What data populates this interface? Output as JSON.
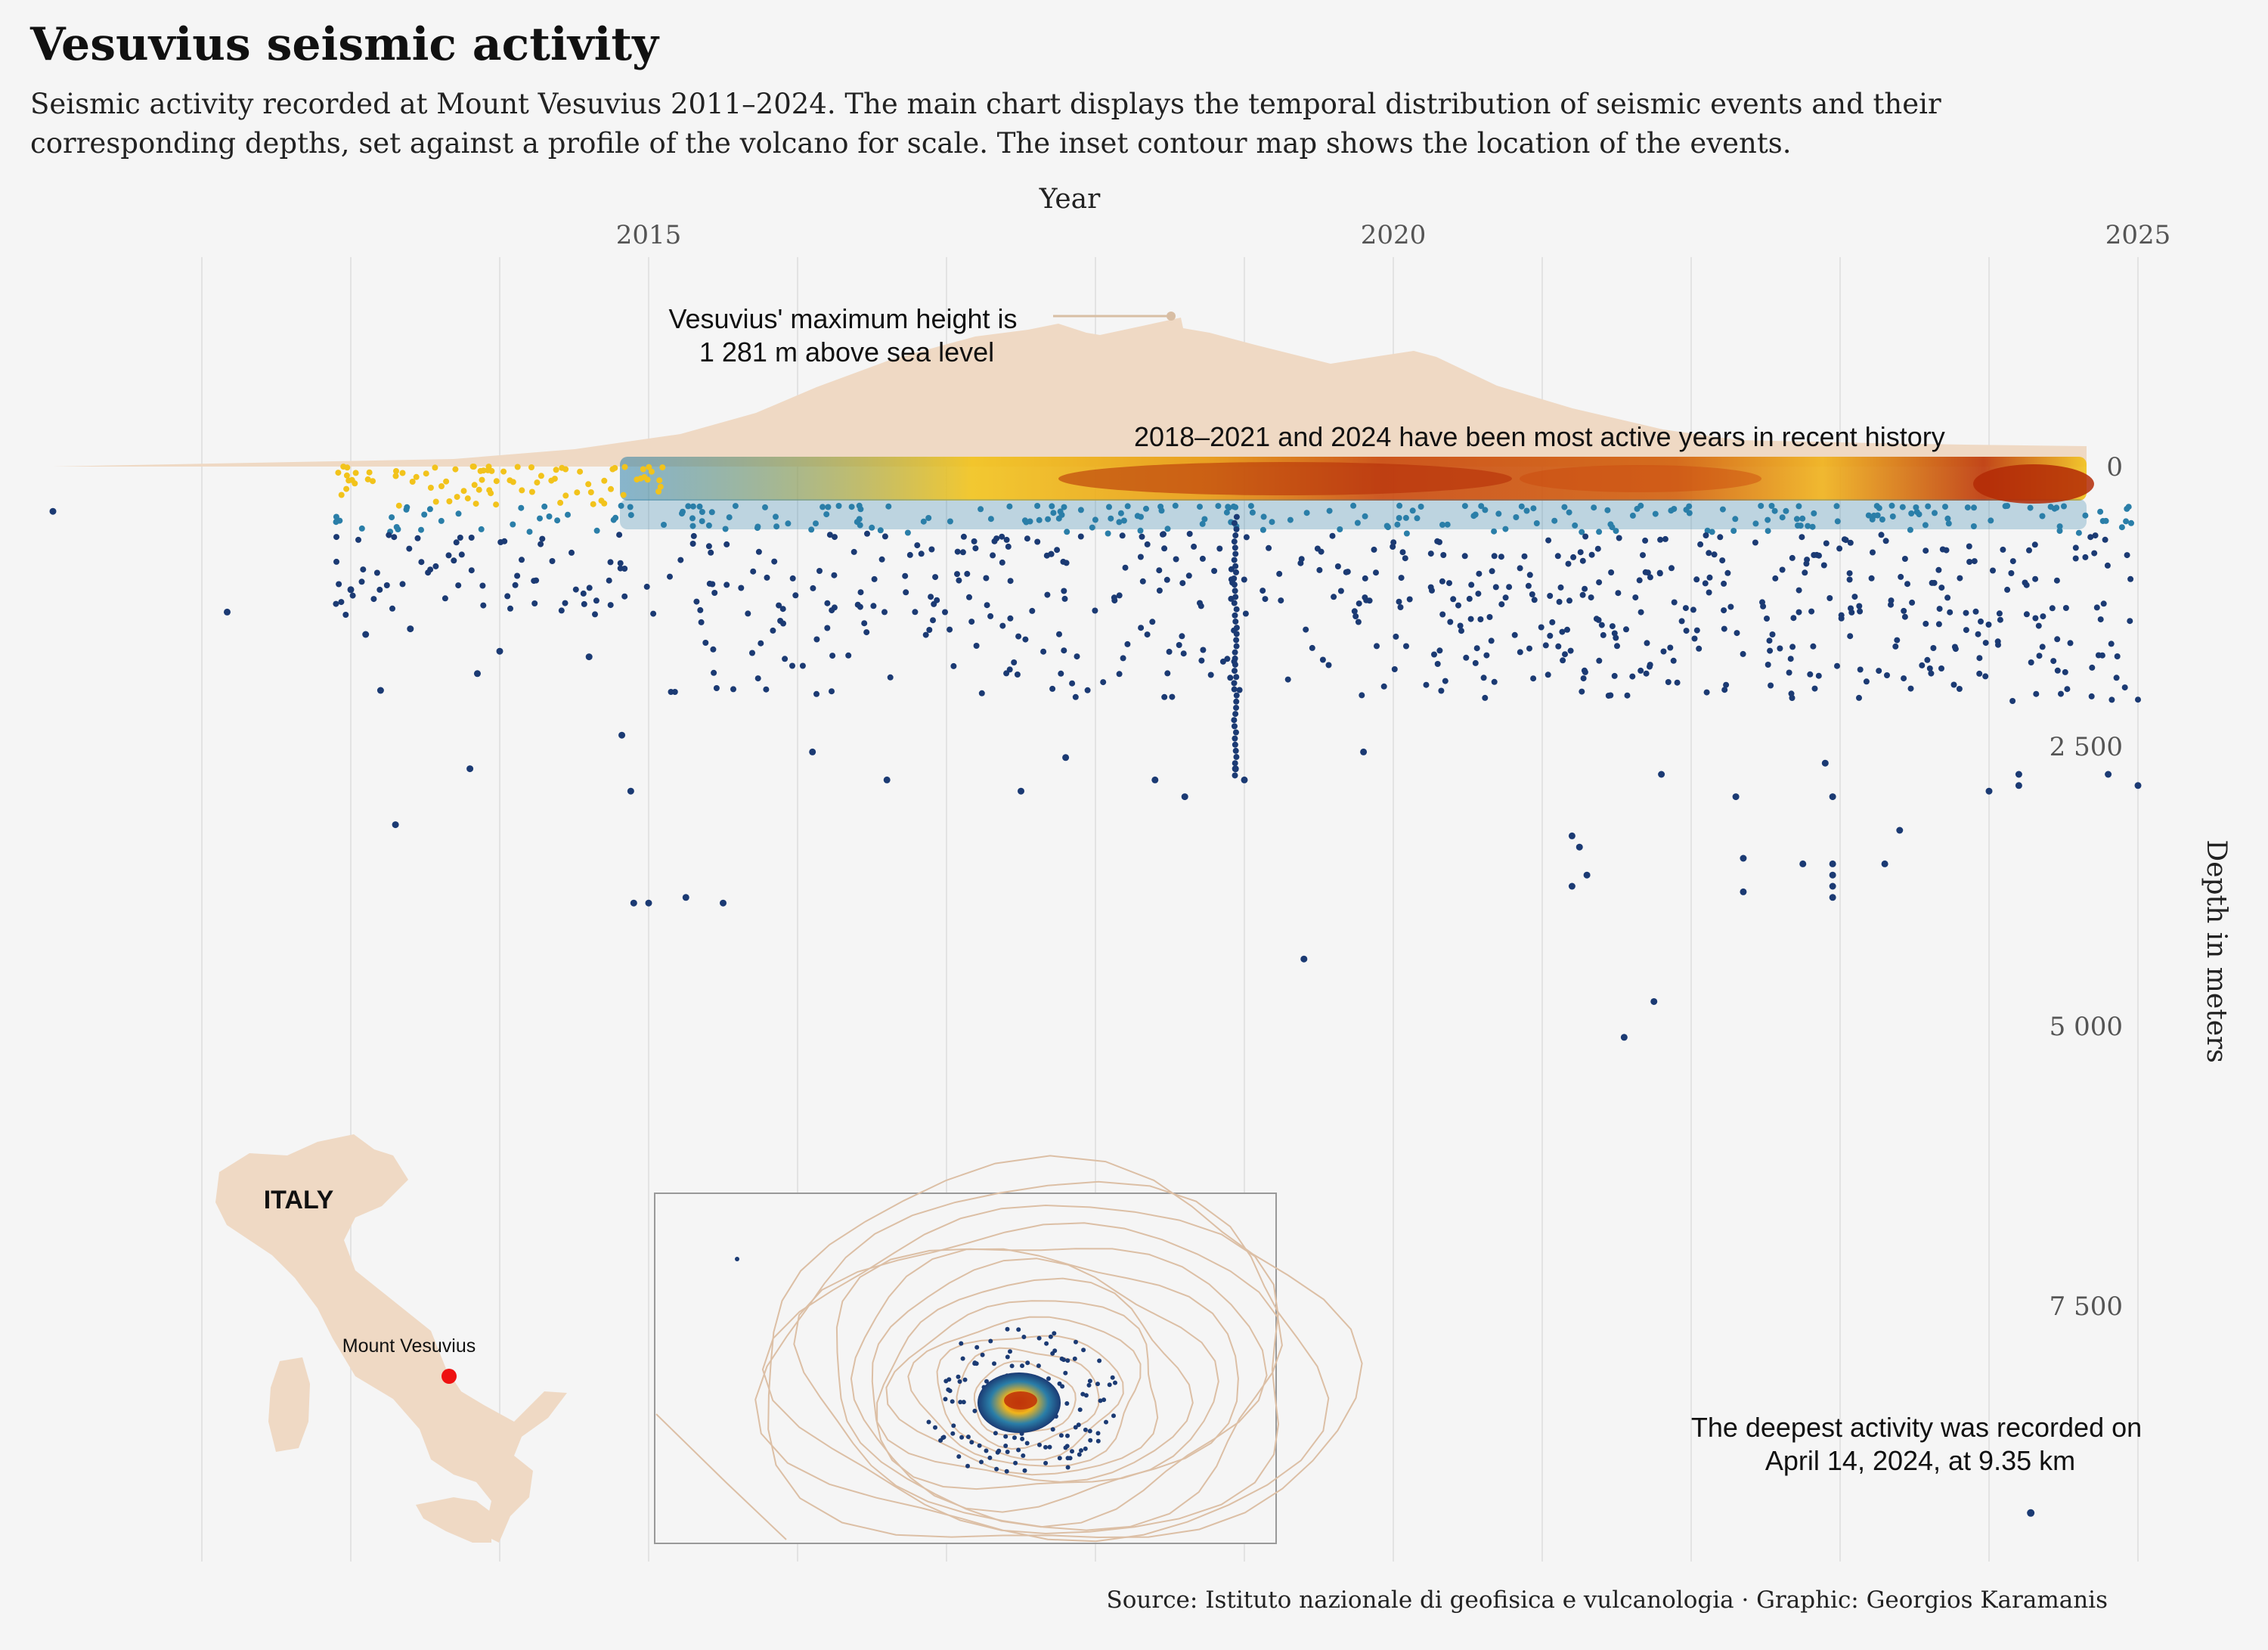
{
  "title": "Vesuvius seismic activity",
  "subtitle": "Seismic activity recorded at Mount Vesuvius 2011–2024. The main chart displays the temporal distribution of seismic events and their corresponding depths, set against a profile of the volcano for scale. The inset contour map shows the location of the events.",
  "source": "Source: Istituto nazionale di geofisica e vulcanologia · Graphic: Georgios Karamanis",
  "colors": {
    "background": "#f5f5f5",
    "volcano": "#efd9c4",
    "deep": "#1b3a73",
    "mid": "#2a7ea8",
    "shallow": "#f2c31b",
    "hot": "#b32a06",
    "marker": "#ee1111"
  },
  "chart_data": {
    "type": "scatter",
    "xlabel": "Year",
    "ylabel": "Depth in meters",
    "x_ticks": [
      "2015",
      "2020",
      "2025"
    ],
    "y_ticks": [
      "0",
      "2 500",
      "5 000",
      "7 500"
    ],
    "x_range": [
      2011,
      2025
    ],
    "y_range": [
      -1281,
      9350
    ],
    "volcano_max_height_m": 1281,
    "annotations": {
      "max_height": [
        "Vesuvius' maximum height is",
        "1 281 m above sea level"
      ],
      "active_years": "2018–2021 and 2024 have been most active years in recent history",
      "deepest": [
        "The deepest activity was recorded on",
        "April 14, 2024, at 9.35 km"
      ]
    },
    "deepest_event": {
      "year": 2024.28,
      "depth": 9350
    },
    "events": [
      {
        "year": 2011.0,
        "depth": 400
      },
      {
        "year": 2012.17,
        "depth": 1300
      },
      {
        "year": 2013.0,
        "depth": 1100
      },
      {
        "year": 2013.1,
        "depth": 1500
      },
      {
        "year": 2013.2,
        "depth": 2000
      },
      {
        "year": 2013.3,
        "depth": 3200
      },
      {
        "year": 2013.4,
        "depth": 1450
      },
      {
        "year": 2013.8,
        "depth": 2700
      },
      {
        "year": 2013.85,
        "depth": 1850
      },
      {
        "year": 2014.0,
        "depth": 1650
      },
      {
        "year": 2014.6,
        "depth": 1700
      },
      {
        "year": 2014.9,
        "depth": 3900
      },
      {
        "year": 2014.82,
        "depth": 2400
      },
      {
        "year": 2014.88,
        "depth": 2900
      },
      {
        "year": 2015.0,
        "depth": 3900
      },
      {
        "year": 2015.25,
        "depth": 3850
      },
      {
        "year": 2015.5,
        "depth": 3900
      },
      {
        "year": 2016.1,
        "depth": 2550
      },
      {
        "year": 2016.6,
        "depth": 2800
      },
      {
        "year": 2017.5,
        "depth": 2900
      },
      {
        "year": 2017.8,
        "depth": 2600
      },
      {
        "year": 2018.4,
        "depth": 2800
      },
      {
        "year": 2018.6,
        "depth": 2950
      },
      {
        "year": 2018.94,
        "depth": 2700
      },
      {
        "year": 2019.0,
        "depth": 2800
      },
      {
        "year": 2019.4,
        "depth": 4400
      },
      {
        "year": 2019.8,
        "depth": 2550
      },
      {
        "year": 2021.2,
        "depth": 3300
      },
      {
        "year": 2021.2,
        "depth": 3750
      },
      {
        "year": 2021.25,
        "depth": 3400
      },
      {
        "year": 2021.3,
        "depth": 3650
      },
      {
        "year": 2021.8,
        "depth": 2750
      },
      {
        "year": 2021.75,
        "depth": 4780
      },
      {
        "year": 2021.55,
        "depth": 5100
      },
      {
        "year": 2022.3,
        "depth": 2950
      },
      {
        "year": 2022.35,
        "depth": 3500
      },
      {
        "year": 2022.35,
        "depth": 3800
      },
      {
        "year": 2022.75,
        "depth": 3550
      },
      {
        "year": 2022.95,
        "depth": 3550
      },
      {
        "year": 2022.95,
        "depth": 3650
      },
      {
        "year": 2022.95,
        "depth": 3750
      },
      {
        "year": 2022.95,
        "depth": 3850
      },
      {
        "year": 2022.9,
        "depth": 2650
      },
      {
        "year": 2022.95,
        "depth": 2950
      },
      {
        "year": 2023.3,
        "depth": 3550
      },
      {
        "year": 2023.4,
        "depth": 3250
      },
      {
        "year": 2024.0,
        "depth": 2900
      },
      {
        "year": 2024.2,
        "depth": 2750
      },
      {
        "year": 2024.2,
        "depth": 2850
      },
      {
        "year": 2024.8,
        "depth": 2750
      },
      {
        "year": 2025.0,
        "depth": 2850
      }
    ]
  },
  "inset_map": {
    "label": "ITALY",
    "marker_label": "Mount Vesuvius"
  }
}
